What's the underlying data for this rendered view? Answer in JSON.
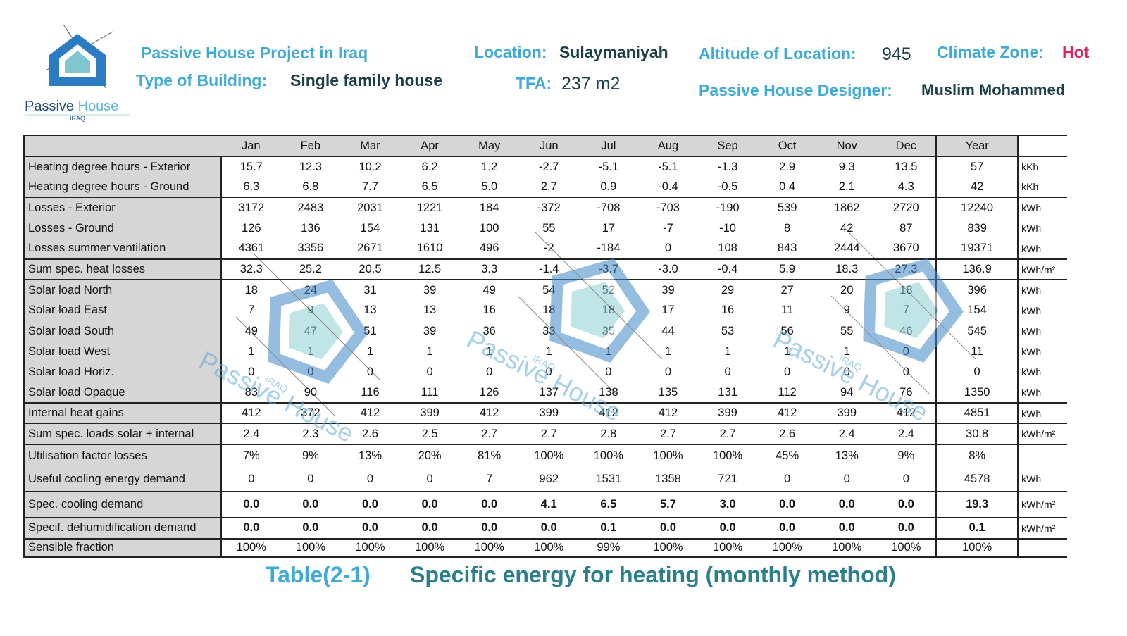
{
  "header": {
    "logo": {
      "word1": "Passive",
      "word2": "House",
      "sub": "IRAQ"
    },
    "project": "Passive House Project in Iraq",
    "type_label": "Type of Building:",
    "type_value": "Single family house",
    "location_label": "Location:",
    "location_value": "Sulaymaniyah",
    "tfa_label": "TFA:",
    "tfa_value": "237 m2",
    "altitude_label": "Altitude of Location:",
    "altitude_value": "945",
    "climate_label": "Climate Zone:",
    "climate_value": "Hot",
    "designer_label": "Passive House Designer:",
    "designer_value": "Muslim Mohammed"
  },
  "watermark": {
    "text": "Passive House",
    "sub": "IRAQ"
  },
  "table": {
    "columns": [
      "Jan",
      "Feb",
      "Mar",
      "Apr",
      "May",
      "Jun",
      "Jul",
      "Aug",
      "Sep",
      "Oct",
      "Nov",
      "Dec",
      "Year"
    ],
    "groups": [
      {
        "rows": [
          {
            "label": "Heating degree hours - Exterior",
            "values": [
              "15.7",
              "12.3",
              "10.2",
              "6.2",
              "1.2",
              "-2.7",
              "-5.1",
              "-5.1",
              "-1.3",
              "2.9",
              "9.3",
              "13.5"
            ],
            "year": "57",
            "unit": "kKh"
          },
          {
            "label": "Heating degree hours - Ground",
            "values": [
              "6.3",
              "6.8",
              "7.7",
              "6.5",
              "5.0",
              "2.7",
              "0.9",
              "-0.4",
              "-0.5",
              "0.4",
              "2.1",
              "4.3"
            ],
            "year": "42",
            "unit": "kKh"
          }
        ]
      },
      {
        "rows": [
          {
            "label": "Losses - Exterior",
            "values": [
              "3172",
              "2483",
              "2031",
              "1221",
              "184",
              "-372",
              "-708",
              "-703",
              "-190",
              "539",
              "1862",
              "2720"
            ],
            "year": "12240",
            "unit": "kWh"
          },
          {
            "label": "Losses - Ground",
            "values": [
              "126",
              "136",
              "154",
              "131",
              "100",
              "55",
              "17",
              "-7",
              "-10",
              "8",
              "42",
              "87"
            ],
            "year": "839",
            "unit": "kWh"
          },
          {
            "label": "Losses summer ventilation",
            "values": [
              "4361",
              "3356",
              "2671",
              "1610",
              "496",
              "-2",
              "-184",
              "0",
              "108",
              "843",
              "2444",
              "3670"
            ],
            "year": "19371",
            "unit": "kWh"
          }
        ]
      },
      {
        "rows": [
          {
            "label": "Sum spec. heat losses",
            "values": [
              "32.3",
              "25.2",
              "20.5",
              "12.5",
              "3.3",
              "-1.4",
              "-3.7",
              "-3.0",
              "-0.4",
              "5.9",
              "18.3",
              "27.3"
            ],
            "year": "136.9",
            "unit": "kWh/m²"
          }
        ]
      },
      {
        "rows": [
          {
            "label": "Solar load North",
            "values": [
              "18",
              "24",
              "31",
              "39",
              "49",
              "54",
              "52",
              "39",
              "29",
              "27",
              "20",
              "18"
            ],
            "year": "396",
            "unit": "kWh"
          },
          {
            "label": "Solar load East",
            "values": [
              "7",
              "9",
              "13",
              "13",
              "16",
              "18",
              "18",
              "17",
              "16",
              "11",
              "9",
              "7"
            ],
            "year": "154",
            "unit": "kWh"
          },
          {
            "label": "Solar load South",
            "values": [
              "49",
              "47",
              "51",
              "39",
              "36",
              "33",
              "35",
              "44",
              "53",
              "56",
              "55",
              "46"
            ],
            "year": "545",
            "unit": "kWh"
          },
          {
            "label": "Solar load West",
            "values": [
              "1",
              "1",
              "1",
              "1",
              "1",
              "1",
              "1",
              "1",
              "1",
              "1",
              "1",
              "0"
            ],
            "year": "11",
            "unit": "kWh"
          },
          {
            "label": "Solar load Horiz.",
            "values": [
              "0",
              "0",
              "0",
              "0",
              "0",
              "0",
              "0",
              "0",
              "0",
              "0",
              "0",
              "0"
            ],
            "year": "0",
            "unit": "kWh"
          },
          {
            "label": "Solar load Opaque",
            "values": [
              "83",
              "90",
              "116",
              "111",
              "126",
              "137",
              "138",
              "135",
              "131",
              "112",
              "94",
              "76"
            ],
            "year": "1350",
            "unit": "kWh"
          }
        ]
      },
      {
        "rows": [
          {
            "label": "Internal heat gains",
            "values": [
              "412",
              "372",
              "412",
              "399",
              "412",
              "399",
              "412",
              "412",
              "399",
              "412",
              "399",
              "412"
            ],
            "year": "4851",
            "unit": "kWh"
          }
        ]
      },
      {
        "rows": [
          {
            "label": "Sum spec. loads solar + internal",
            "values": [
              "2.4",
              "2.3",
              "2.6",
              "2.5",
              "2.7",
              "2.7",
              "2.8",
              "2.7",
              "2.7",
              "2.6",
              "2.4",
              "2.4"
            ],
            "year": "30.8",
            "unit": "kWh/m²"
          }
        ]
      },
      {
        "rows": [
          {
            "label": "Utilisation factor losses",
            "values": [
              "7%",
              "9%",
              "13%",
              "20%",
              "81%",
              "100%",
              "100%",
              "100%",
              "100%",
              "45%",
              "13%",
              "9%"
            ],
            "year": "8%"
          },
          {
            "label": "Useful cooling energy demand",
            "values": [
              "0",
              "0",
              "0",
              "0",
              "7",
              "962",
              "1531",
              "1358",
              "721",
              "0",
              "0",
              "0"
            ],
            "year": "4578",
            "unit": "kWh"
          }
        ]
      },
      {
        "bold": true,
        "rows": [
          {
            "label": "Spec. cooling demand",
            "values": [
              "0.0",
              "0.0",
              "0.0",
              "0.0",
              "0.0",
              "4.1",
              "6.5",
              "5.7",
              "3.0",
              "0.0",
              "0.0",
              "0.0"
            ],
            "year": "19.3",
            "unit": "kWh/m²"
          }
        ]
      },
      {
        "bold": true,
        "rows": [
          {
            "label": "Specif. dehumidification demand",
            "values": [
              "0.0",
              "0.0",
              "0.0",
              "0.0",
              "0.0",
              "0.0",
              "0.1",
              "0.0",
              "0.0",
              "0.0",
              "0.0",
              "0.0"
            ],
            "year": "0.1",
            "unit": "kWh/m²"
          }
        ]
      },
      {
        "rows": [
          {
            "label": "Sensible fraction",
            "values": [
              "100%",
              "100%",
              "100%",
              "100%",
              "100%",
              "100%",
              "99%",
              "100%",
              "100%",
              "100%",
              "100%",
              "100%"
            ],
            "year": "100%"
          }
        ]
      }
    ]
  },
  "caption": {
    "label": "Table(2-1)",
    "text": "Specific energy for heating (monthly method)"
  }
}
